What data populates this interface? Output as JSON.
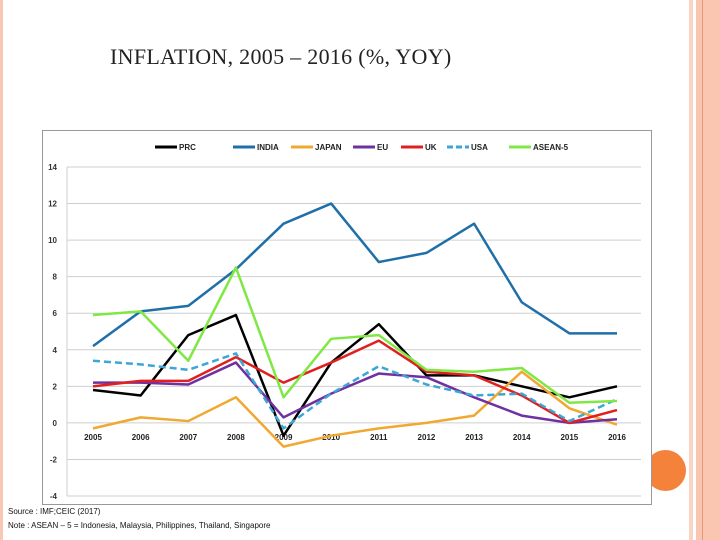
{
  "title": "INFLATION, 2005 – 2016 (%, YOY)",
  "source": "Source : IMF;CEIC (2017)",
  "note": "Note : ASEAN – 5 = Indonesia, Malaysia, Philippines, Thailand, Singapore",
  "colors": {
    "accent_circle": "#f5823a",
    "frame": "#fac6b2"
  },
  "chart_data": {
    "type": "line",
    "title": "",
    "xlabel": "",
    "ylabel": "",
    "categories": [
      "2005",
      "2006",
      "2007",
      "2008",
      "2009",
      "2010",
      "2011",
      "2012",
      "2013",
      "2014",
      "2015",
      "2016"
    ],
    "ylim": [
      -4,
      14
    ],
    "yticks": [
      "-4",
      "-2",
      "0",
      "2",
      "4",
      "6",
      "8",
      "10",
      "12",
      "14"
    ],
    "grid": true,
    "legend": "top",
    "series": [
      {
        "name": "PRC",
        "color": "#000000",
        "dashed": false,
        "values": [
          1.8,
          1.5,
          4.8,
          5.9,
          -0.7,
          3.3,
          5.4,
          2.6,
          2.6,
          2.0,
          1.4,
          2.0
        ]
      },
      {
        "name": "INDIA",
        "color": "#1f6fa8",
        "dashed": false,
        "values": [
          4.2,
          6.1,
          6.4,
          8.4,
          10.9,
          12.0,
          8.8,
          9.3,
          10.9,
          6.6,
          4.9,
          4.9
        ]
      },
      {
        "name": "JAPAN",
        "color": "#f0a830",
        "dashed": false,
        "values": [
          -0.3,
          0.3,
          0.1,
          1.4,
          -1.3,
          -0.7,
          -0.3,
          0.0,
          0.4,
          2.8,
          0.8,
          -0.1
        ]
      },
      {
        "name": "EU",
        "color": "#7030a0",
        "dashed": false,
        "values": [
          2.2,
          2.2,
          2.1,
          3.3,
          0.3,
          1.6,
          2.7,
          2.5,
          1.4,
          0.4,
          0.0,
          0.2
        ]
      },
      {
        "name": "UK",
        "color": "#e02020",
        "dashed": false,
        "values": [
          2.0,
          2.3,
          2.3,
          3.6,
          2.2,
          3.3,
          4.5,
          2.8,
          2.6,
          1.5,
          0.0,
          0.7
        ]
      },
      {
        "name": "USA",
        "color": "#3ca6d6",
        "dashed": true,
        "values": [
          3.4,
          3.2,
          2.9,
          3.8,
          -0.3,
          1.6,
          3.1,
          2.1,
          1.5,
          1.6,
          0.1,
          1.3
        ]
      },
      {
        "name": "ASEAN-5",
        "color": "#80e844",
        "dashed": false,
        "values": [
          5.9,
          6.1,
          3.4,
          8.5,
          1.4,
          4.6,
          4.8,
          2.9,
          2.8,
          3.0,
          1.1,
          1.2
        ]
      }
    ]
  }
}
